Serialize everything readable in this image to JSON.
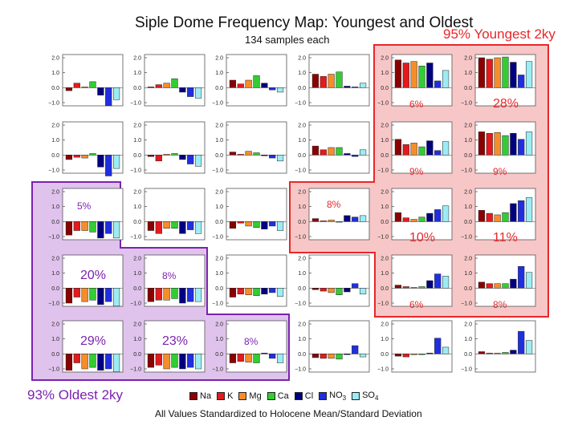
{
  "title": "Siple Dome Frequency Map:  Youngest and Oldest",
  "subtitle": "134 samples each",
  "annotations": {
    "youngest": "95% Youngest 2ky",
    "oldest": "93% Oldest 2ky"
  },
  "footnote": "All Values Standardized to Holocene Mean/Standard Deviation",
  "colors": {
    "young_region_fill": "#f7c7c7",
    "young_region_border": "#e8272a",
    "old_region_fill": "#dfc3ec",
    "old_region_border": "#7b22b0",
    "percent_young": "#e8272a",
    "percent_old": "#7b22b0"
  },
  "legend": [
    {
      "label": "Na",
      "color": "#8b0000"
    },
    {
      "label": "K",
      "color": "#e41a1c"
    },
    {
      "label": "Mg",
      "color": "#f58e2a"
    },
    {
      "label": "Ca",
      "color": "#33cc33"
    },
    {
      "label": "Cl",
      "color": "#000080"
    },
    {
      "label": "NO3",
      "color": "#1f2fe0"
    },
    {
      "label": "SO4",
      "color": "#9cecf5"
    }
  ],
  "chart_data": {
    "type": "bar",
    "grid_rows": 5,
    "grid_cols": 6,
    "categories": [
      "Na",
      "K",
      "Mg",
      "Ca",
      "Cl",
      "NO3",
      "SO4"
    ],
    "ylim": [
      -1.0,
      2.0
    ],
    "yticks": [
      "2.0",
      "1.0",
      "0.0",
      "−1.0"
    ],
    "xlabel": "",
    "ylabel": "",
    "panels": [
      {
        "row": 0,
        "col": 0,
        "values": [
          -0.2,
          0.3,
          0.05,
          0.4,
          -0.5,
          -1.2,
          -0.8
        ],
        "percent": ""
      },
      {
        "row": 0,
        "col": 1,
        "values": [
          0.05,
          0.2,
          0.3,
          0.6,
          -0.3,
          -0.6,
          -0.7
        ],
        "percent": ""
      },
      {
        "row": 0,
        "col": 2,
        "values": [
          0.5,
          0.25,
          0.5,
          0.8,
          0.3,
          -0.15,
          -0.3
        ],
        "percent": ""
      },
      {
        "row": 0,
        "col": 3,
        "values": [
          0.9,
          0.75,
          0.9,
          1.05,
          0.1,
          0.05,
          0.3
        ],
        "percent": ""
      },
      {
        "row": 0,
        "col": 4,
        "values": [
          1.85,
          1.65,
          1.75,
          1.45,
          1.65,
          0.45,
          1.15
        ],
        "percent": "6%"
      },
      {
        "row": 0,
        "col": 5,
        "values": [
          2.0,
          1.9,
          2.0,
          2.05,
          1.7,
          0.85,
          1.75
        ],
        "percent": "28%"
      },
      {
        "row": 1,
        "col": 0,
        "values": [
          -0.3,
          -0.15,
          -0.2,
          0.1,
          -0.8,
          -1.4,
          -0.9
        ],
        "percent": ""
      },
      {
        "row": 1,
        "col": 1,
        "values": [
          -0.1,
          -0.4,
          0.05,
          0.1,
          -0.3,
          -0.6,
          -0.75
        ],
        "percent": ""
      },
      {
        "row": 1,
        "col": 2,
        "values": [
          0.2,
          0.05,
          0.25,
          0.15,
          -0.05,
          -0.2,
          -0.4
        ],
        "percent": ""
      },
      {
        "row": 1,
        "col": 3,
        "values": [
          0.6,
          0.35,
          0.5,
          0.5,
          0.1,
          -0.1,
          0.35
        ],
        "percent": ""
      },
      {
        "row": 1,
        "col": 4,
        "values": [
          1.05,
          0.7,
          0.8,
          0.55,
          0.95,
          0.3,
          0.9
        ],
        "percent": "9%"
      },
      {
        "row": 1,
        "col": 5,
        "values": [
          1.55,
          1.45,
          1.5,
          1.3,
          1.45,
          1.05,
          1.55
        ],
        "percent": "9%"
      },
      {
        "row": 2,
        "col": 0,
        "values": [
          -0.9,
          -0.6,
          -0.6,
          -0.7,
          -1.1,
          -0.8,
          -1.1
        ],
        "percent": "5%"
      },
      {
        "row": 2,
        "col": 1,
        "values": [
          -0.6,
          -0.8,
          -0.45,
          -0.45,
          -0.8,
          -0.55,
          -0.8
        ],
        "percent": ""
      },
      {
        "row": 2,
        "col": 2,
        "values": [
          -0.45,
          -0.1,
          -0.3,
          -0.4,
          -0.5,
          -0.3,
          -0.6
        ],
        "percent": ""
      },
      {
        "row": 2,
        "col": 3,
        "values": [
          0.2,
          0.05,
          0.1,
          0.0,
          0.4,
          0.3,
          0.4
        ],
        "percent": "8%"
      },
      {
        "row": 2,
        "col": 4,
        "values": [
          0.6,
          0.25,
          0.15,
          0.3,
          0.55,
          0.8,
          1.05
        ],
        "percent": "10%"
      },
      {
        "row": 2,
        "col": 5,
        "values": [
          0.75,
          0.55,
          0.45,
          0.6,
          1.2,
          1.4,
          1.6
        ],
        "percent": "11%"
      },
      {
        "row": 3,
        "col": 0,
        "values": [
          -1.0,
          -0.6,
          -0.9,
          -0.8,
          -1.1,
          -0.9,
          -1.2
        ],
        "percent": "20%"
      },
      {
        "row": 3,
        "col": 1,
        "values": [
          -0.9,
          -0.8,
          -0.8,
          -0.7,
          -1.0,
          -0.9,
          -0.9
        ],
        "percent": "8%"
      },
      {
        "row": 3,
        "col": 2,
        "values": [
          -0.6,
          -0.4,
          -0.45,
          -0.5,
          -0.4,
          -0.3,
          -0.55
        ],
        "percent": ""
      },
      {
        "row": 3,
        "col": 3,
        "values": [
          -0.1,
          -0.2,
          -0.3,
          -0.45,
          -0.25,
          0.3,
          -0.4
        ],
        "percent": ""
      },
      {
        "row": 3,
        "col": 4,
        "values": [
          0.2,
          0.1,
          0.05,
          0.1,
          0.5,
          0.95,
          0.8
        ],
        "percent": "6%"
      },
      {
        "row": 3,
        "col": 5,
        "values": [
          0.4,
          0.3,
          0.3,
          0.3,
          0.6,
          1.45,
          1.05
        ],
        "percent": "8%"
      },
      {
        "row": 4,
        "col": 0,
        "values": [
          -1.1,
          -0.6,
          -1.0,
          -0.9,
          -1.1,
          -1.0,
          -1.2
        ],
        "percent": "29%"
      },
      {
        "row": 4,
        "col": 1,
        "values": [
          -0.9,
          -0.75,
          -1.0,
          -0.9,
          -1.0,
          -0.9,
          -1.0
        ],
        "percent": "23%"
      },
      {
        "row": 4,
        "col": 2,
        "values": [
          -0.6,
          -0.5,
          -0.55,
          -0.6,
          0.05,
          -0.3,
          -0.6
        ],
        "percent": "8%"
      },
      {
        "row": 4,
        "col": 3,
        "values": [
          -0.25,
          -0.3,
          -0.3,
          -0.35,
          -0.05,
          0.55,
          -0.2
        ],
        "percent": ""
      },
      {
        "row": 4,
        "col": 4,
        "values": [
          -0.15,
          -0.2,
          -0.05,
          -0.05,
          0.05,
          1.05,
          0.45
        ],
        "percent": ""
      },
      {
        "row": 4,
        "col": 5,
        "values": [
          0.15,
          0.05,
          0.05,
          0.1,
          0.25,
          1.5,
          0.9
        ],
        "percent": ""
      }
    ]
  }
}
